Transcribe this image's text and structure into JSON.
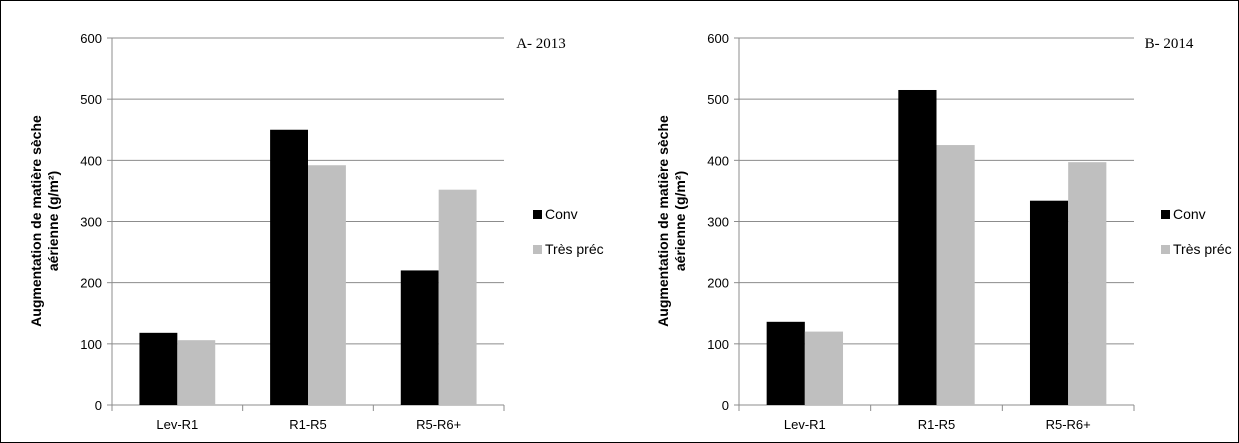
{
  "chart_data": [
    {
      "type": "bar",
      "title": "A- 2013",
      "ylabel_lines": [
        "Augmentation de matière sèche",
        "aérienne (g/m²)"
      ],
      "xlabel": "",
      "categories": [
        "Lev-R1",
        "R1-R5",
        "R5-R6+"
      ],
      "ylim": [
        0,
        600
      ],
      "yticks": [
        0,
        100,
        200,
        300,
        400,
        500,
        600
      ],
      "grid": true,
      "legend_position": "right",
      "series": [
        {
          "name": "Conv",
          "color": "#000000",
          "values": [
            118,
            450,
            220
          ]
        },
        {
          "name": "Très préc",
          "color": "#bfbfbf",
          "values": [
            106,
            392,
            352
          ]
        }
      ]
    },
    {
      "type": "bar",
      "title": "B- 2014",
      "ylabel_lines": [
        "Augmentation de matière sèche",
        "aérienne (g/m²)"
      ],
      "xlabel": "",
      "categories": [
        "Lev-R1",
        "R1-R5",
        "R5-R6+"
      ],
      "ylim": [
        0,
        600
      ],
      "yticks": [
        0,
        100,
        200,
        300,
        400,
        500,
        600
      ],
      "grid": true,
      "legend_position": "right",
      "series": [
        {
          "name": "Conv",
          "color": "#000000",
          "values": [
            136,
            515,
            334
          ]
        },
        {
          "name": "Très préc",
          "color": "#bfbfbf",
          "values": [
            120,
            425,
            397
          ]
        }
      ]
    }
  ]
}
